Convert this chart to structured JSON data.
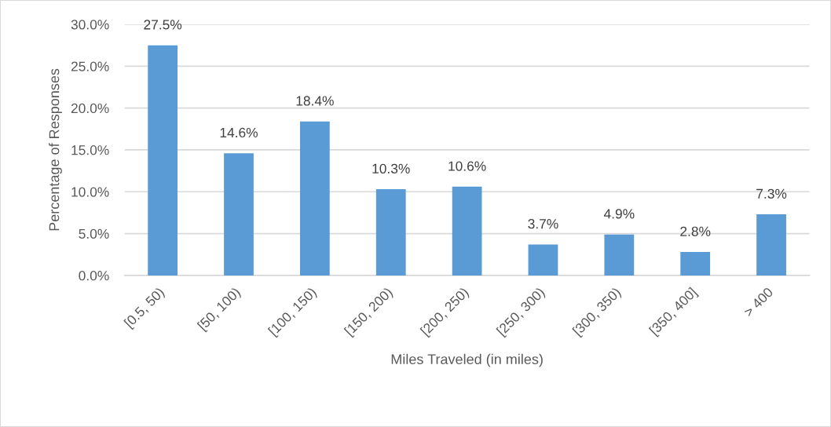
{
  "chart_data": {
    "type": "bar",
    "xlabel": "Miles Traveled (in miles)",
    "ylabel": "Percentage of Responses",
    "categories": [
      "[0.5, 50)",
      "[50, 100)",
      "[100, 150)",
      "[150, 200)",
      "[200, 250)",
      "[250, 300)",
      "[300, 350)",
      "[350, 400]",
      "> 400"
    ],
    "values": [
      27.5,
      14.6,
      18.4,
      10.3,
      10.6,
      3.7,
      4.9,
      2.8,
      7.3
    ],
    "value_labels": [
      "27.5%",
      "14.6%",
      "18.4%",
      "10.3%",
      "10.6%",
      "3.7%",
      "4.9%",
      "2.8%",
      "7.3%"
    ],
    "color": "#5b9bd5",
    "ylim": [
      0,
      30
    ],
    "yticks": [
      {
        "value": 0,
        "label": "0.0%"
      },
      {
        "value": 5,
        "label": "5.0%"
      },
      {
        "value": 10,
        "label": "10.0%"
      },
      {
        "value": 15,
        "label": "15.0%"
      },
      {
        "value": 20,
        "label": "20.0%"
      },
      {
        "value": 25,
        "label": "25.0%"
      },
      {
        "value": 30,
        "label": "30.0%"
      }
    ],
    "grid": "y",
    "legend": false
  }
}
